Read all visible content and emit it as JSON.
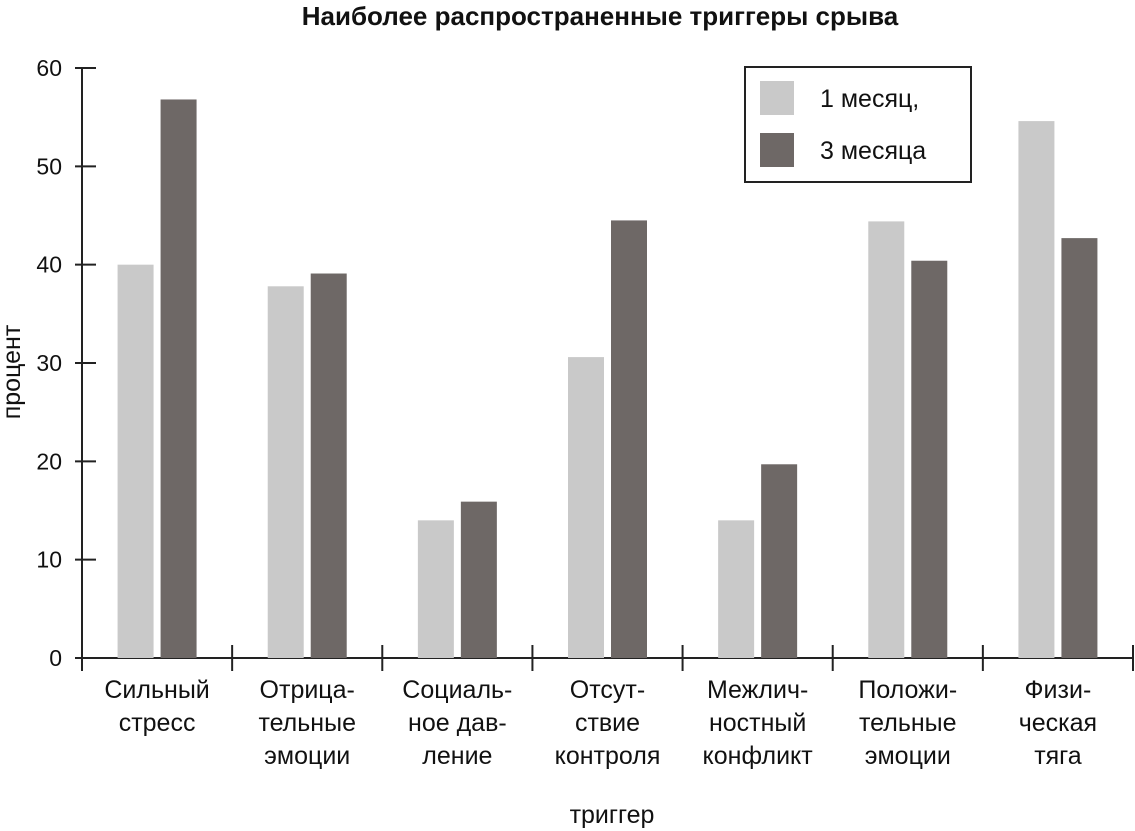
{
  "chart_data": {
    "type": "bar",
    "title": "Наиболее распространенные триггеры срыва",
    "xlabel": "триггер",
    "ylabel": "процент",
    "ylim": [
      0,
      60
    ],
    "yticks": [
      0,
      10,
      20,
      30,
      40,
      50,
      60
    ],
    "categories": [
      [
        "Сильный",
        "стресс"
      ],
      [
        "Отрица-",
        "тельные",
        "эмоции"
      ],
      [
        "Социаль-",
        "ное дав-",
        "ление"
      ],
      [
        "Отсут-",
        "ствие",
        "контроля"
      ],
      [
        "Межлич-",
        "ностный",
        "конфликт"
      ],
      [
        "Положи-",
        "тельные",
        "эмоции"
      ],
      [
        "Физи-",
        "ческая",
        "тяга"
      ]
    ],
    "series": [
      {
        "name": "1 месяц,",
        "color": "#c9c9c9",
        "values": [
          40,
          37.8,
          14,
          30.6,
          14,
          44.4,
          54.6
        ]
      },
      {
        "name": "3 месяца",
        "color": "#6e6866",
        "values": [
          56.8,
          39.1,
          15.9,
          44.5,
          19.7,
          40.4,
          42.7
        ]
      }
    ],
    "legend": "top-right",
    "grid": false
  }
}
